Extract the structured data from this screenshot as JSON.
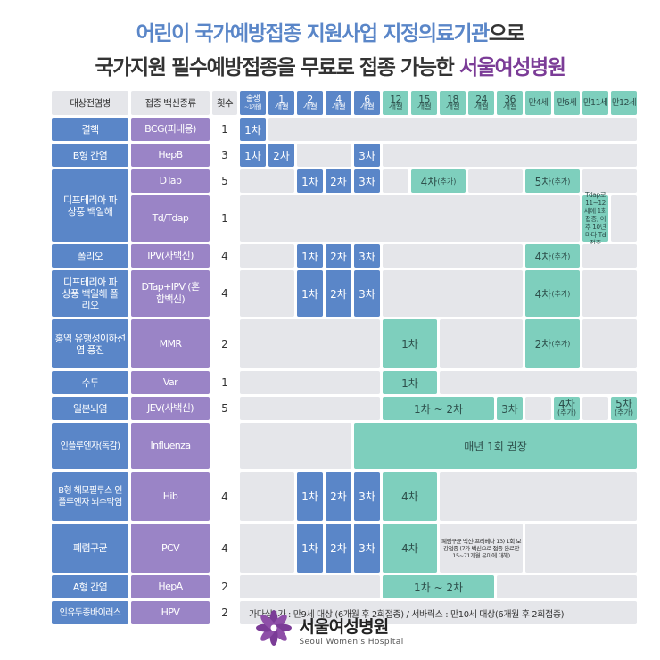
{
  "title": {
    "line1_blue": "어린이 국가예방접종 지원사업 지정의료기관",
    "line1_rest": "으로",
    "line2_main": "국가지원 필수예방접종을 무료로 접종 가능한",
    "line2_hosp": "서울여성병원"
  },
  "header": {
    "disease": "대상전염병",
    "vaccine": "접종 백신종류",
    "count": "횟수",
    "ages": [
      {
        "a": "출생",
        "b": "~1개월"
      },
      {
        "a": "1",
        "b": "개월"
      },
      {
        "a": "2",
        "b": "개월"
      },
      {
        "a": "4",
        "b": "개월"
      },
      {
        "a": "6",
        "b": "개월"
      },
      {
        "a": "12",
        "b": "개월"
      },
      {
        "a": "15",
        "b": "개월"
      },
      {
        "a": "18",
        "b": "개월"
      },
      {
        "a": "24",
        "b": "개월"
      },
      {
        "a": "36",
        "b": "개월"
      },
      {
        "a": "만4세",
        "b": ""
      },
      {
        "a": "만6세",
        "b": ""
      },
      {
        "a": "만11세",
        "b": ""
      },
      {
        "a": "만12세",
        "b": ""
      }
    ]
  },
  "diseases": {
    "tb": "결핵",
    "hepb": "B형 간염",
    "dtp": "디프테리아 파상풍 백일해",
    "polio": "폴리오",
    "dtp_polio": "디프테리아 파상풍 백일해 폴리오",
    "mmr": "홍역 유행성이하선염 풍진",
    "var": "수두",
    "je": "일본뇌염",
    "flu": "인플루엔자(독감)",
    "hib": "B형 헤모필루스 인플루엔자 뇌수막염",
    "pcv": "폐렴구균",
    "hepa": "A형 간염",
    "hpv": "인유두종바이러스"
  },
  "vaccines": {
    "bcg": "BCG(피내용)",
    "hepb": "HepB",
    "dtap": "DTap",
    "tdap": "Td/Tdap",
    "ipv": "IPV(사백신)",
    "dtap_ipv": "DTap+IPV (혼합백신)",
    "mmr": "MMR",
    "var": "Var",
    "jev": "JEV(사백신)",
    "flu": "Influenza",
    "hib": "Hib",
    "pcv": "PCV",
    "hepa": "HepA",
    "hpv": "HPV"
  },
  "counts": {
    "bcg": "1",
    "hepb": "3",
    "dtap": "5",
    "tdap": "1",
    "ipv": "4",
    "dtap_ipv": "4",
    "mmr": "2",
    "var": "1",
    "jev": "5",
    "hib": "4",
    "pcv": "4",
    "hepa": "2",
    "hpv": "2"
  },
  "doses": {
    "d1": "1차",
    "d2": "2차",
    "d3": "3차",
    "d4": "4차",
    "d4_plus": "4차",
    "d5_plus": "5차",
    "plus": "(추가)",
    "jev_12_24": "1차 ~ 2차",
    "hepa_12_24": "1차 ~ 2차",
    "flu_yearly": "매년 1회 권장"
  },
  "notes": {
    "tdap": "Tdap로 11~12세에 1회접종, 이후 10년마다 Td접종",
    "pcv": "폐렴구균 백신(프리베나 13) 1회 보강접종 (7가 백신으로 접종 완료한 15~71개월 유아에 대해)",
    "hpv": "가다실4가 : 만9세 대상 (6개월 후 2회접종) / 서바릭스 : 만10세 대상(6개월 후 2회접종)"
  },
  "logo": {
    "name_ko": "서울여성병원",
    "name_en": "Seoul Women's Hospital"
  },
  "colors": {
    "blue": "#5a86c8",
    "purple": "#9a84c6",
    "teal": "#7ecfbd",
    "gray": "#e5e6ea",
    "hospital_purple": "#7b3c97"
  }
}
